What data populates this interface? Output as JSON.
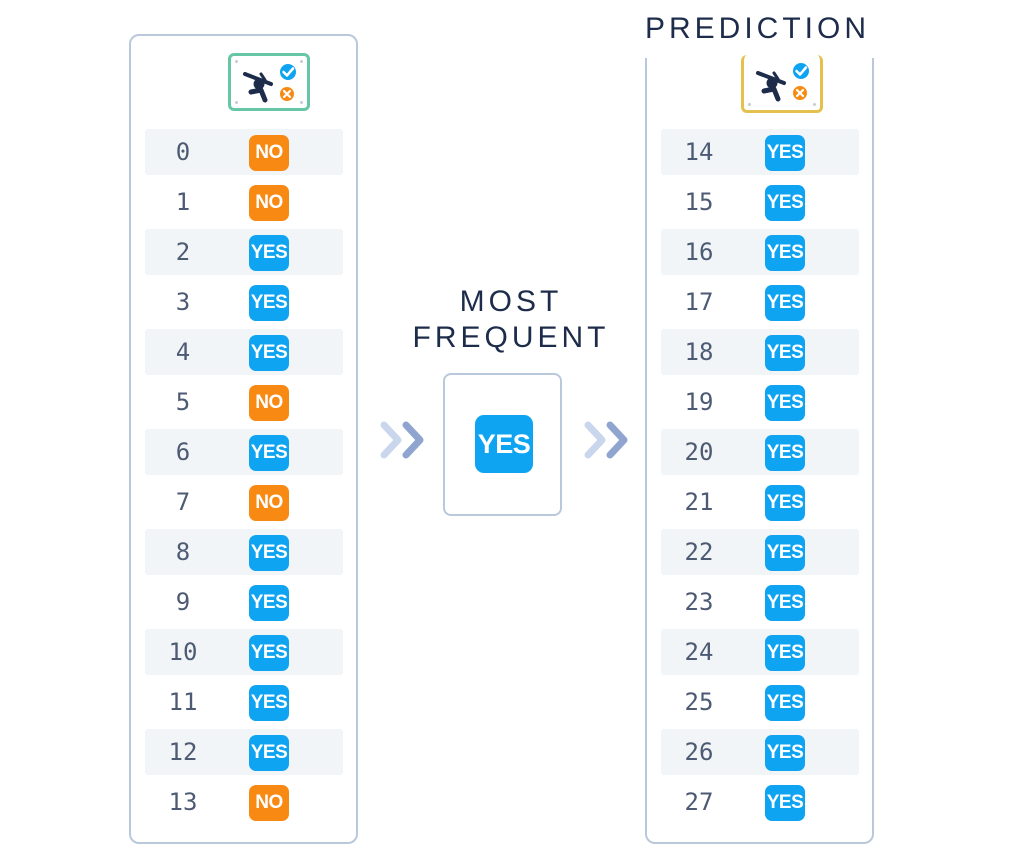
{
  "titles": {
    "prediction": "PREDICTION",
    "most_frequent_line1": "MOST",
    "most_frequent_line2": "FREQUENT"
  },
  "icons": {
    "input_column": "golf-decision-icon",
    "output_column": "golf-decision-icon",
    "arrows": "double-chevron-right-icon"
  },
  "colors": {
    "yes": "#0fa4f2",
    "no": "#f88a14",
    "input_frame": "#67c6a6",
    "output_frame": "#e3c14c"
  },
  "training_rows": [
    {
      "index": "0",
      "label": "NO"
    },
    {
      "index": "1",
      "label": "NO"
    },
    {
      "index": "2",
      "label": "YES"
    },
    {
      "index": "3",
      "label": "YES"
    },
    {
      "index": "4",
      "label": "YES"
    },
    {
      "index": "5",
      "label": "NO"
    },
    {
      "index": "6",
      "label": "YES"
    },
    {
      "index": "7",
      "label": "NO"
    },
    {
      "index": "8",
      "label": "YES"
    },
    {
      "index": "9",
      "label": "YES"
    },
    {
      "index": "10",
      "label": "YES"
    },
    {
      "index": "11",
      "label": "YES"
    },
    {
      "index": "12",
      "label": "YES"
    },
    {
      "index": "13",
      "label": "NO"
    }
  ],
  "most_frequent_value": "YES",
  "prediction_rows": [
    {
      "index": "14",
      "label": "YES"
    },
    {
      "index": "15",
      "label": "YES"
    },
    {
      "index": "16",
      "label": "YES"
    },
    {
      "index": "17",
      "label": "YES"
    },
    {
      "index": "18",
      "label": "YES"
    },
    {
      "index": "19",
      "label": "YES"
    },
    {
      "index": "20",
      "label": "YES"
    },
    {
      "index": "21",
      "label": "YES"
    },
    {
      "index": "22",
      "label": "YES"
    },
    {
      "index": "23",
      "label": "YES"
    },
    {
      "index": "24",
      "label": "YES"
    },
    {
      "index": "25",
      "label": "YES"
    },
    {
      "index": "26",
      "label": "YES"
    },
    {
      "index": "27",
      "label": "YES"
    }
  ]
}
